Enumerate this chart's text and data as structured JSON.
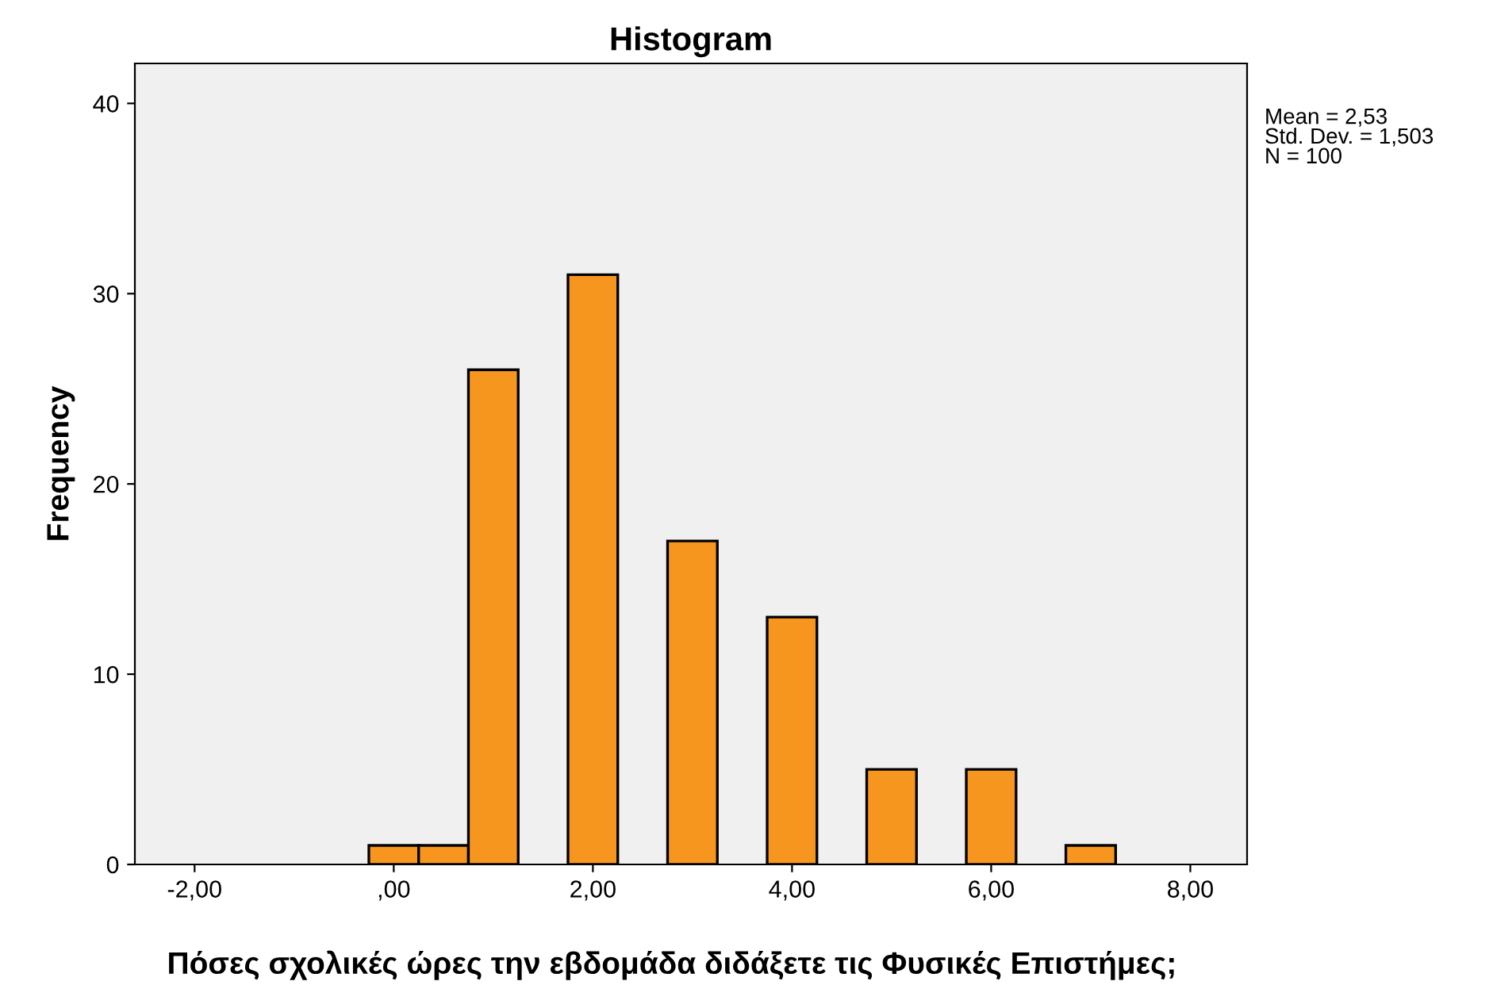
{
  "chart_data": {
    "type": "histogram",
    "title": "Histogram",
    "xlabel": "Πόσες σχολικές ώρες την εβδομάδα διδάξετε τις Φυσικές Επιστήμες;",
    "ylabel": "Frequency",
    "bins": [
      -0.25,
      0.25,
      0.75,
      1.25,
      1.75,
      2.25,
      2.75,
      3.25,
      3.75,
      4.25,
      4.75,
      5.25,
      5.75,
      6.25,
      6.75,
      7.25
    ],
    "values": [
      1,
      1,
      26,
      0,
      31,
      0,
      17,
      0,
      13,
      0,
      5,
      0,
      5,
      0,
      1
    ],
    "color": "#f7961e",
    "xlim": [
      -2.6,
      8.57
    ],
    "xticks": [
      {
        "value": -2,
        "label": "-2,00"
      },
      {
        "value": 0,
        "label": ",00"
      },
      {
        "value": 2,
        "label": "2,00"
      },
      {
        "value": 4,
        "label": "4,00"
      },
      {
        "value": 6,
        "label": "6,00"
      },
      {
        "value": 8,
        "label": "8,00"
      }
    ],
    "ylim": [
      0,
      42.1
    ],
    "yticks": [
      0,
      10,
      20,
      30,
      40
    ],
    "annotations": [
      "Mean = 2,53\nStd. Dev. = 1,503\nN = 100"
    ],
    "grid": false,
    "legend": false
  }
}
